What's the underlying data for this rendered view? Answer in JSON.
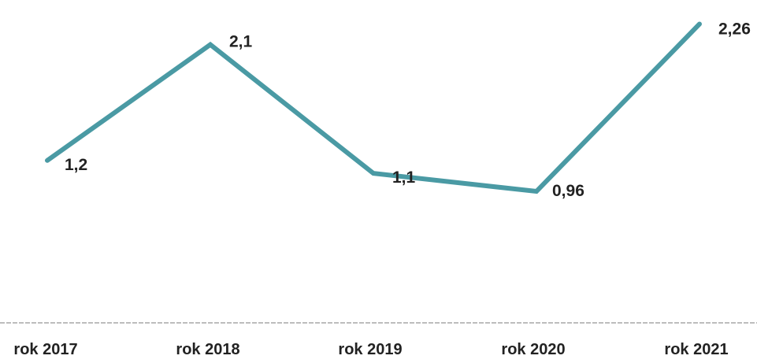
{
  "chart_data": {
    "type": "line",
    "categories": [
      "rok 2017",
      "rok 2018",
      "rok 2019",
      "rok 2020",
      "rok 2021"
    ],
    "series": [
      {
        "values": [
          1.2,
          2.1,
          1.1,
          0.96,
          2.26
        ],
        "data_labels": [
          "1,2",
          "2,1",
          "1,1",
          "0,96",
          "2,26"
        ],
        "color": "#4a9aa4"
      }
    ],
    "title": "",
    "xlabel": "",
    "ylabel": "",
    "ylim": [
      0,
      2.5
    ],
    "grid": false,
    "legend": "none",
    "axis_color": "#bdbdbd"
  }
}
